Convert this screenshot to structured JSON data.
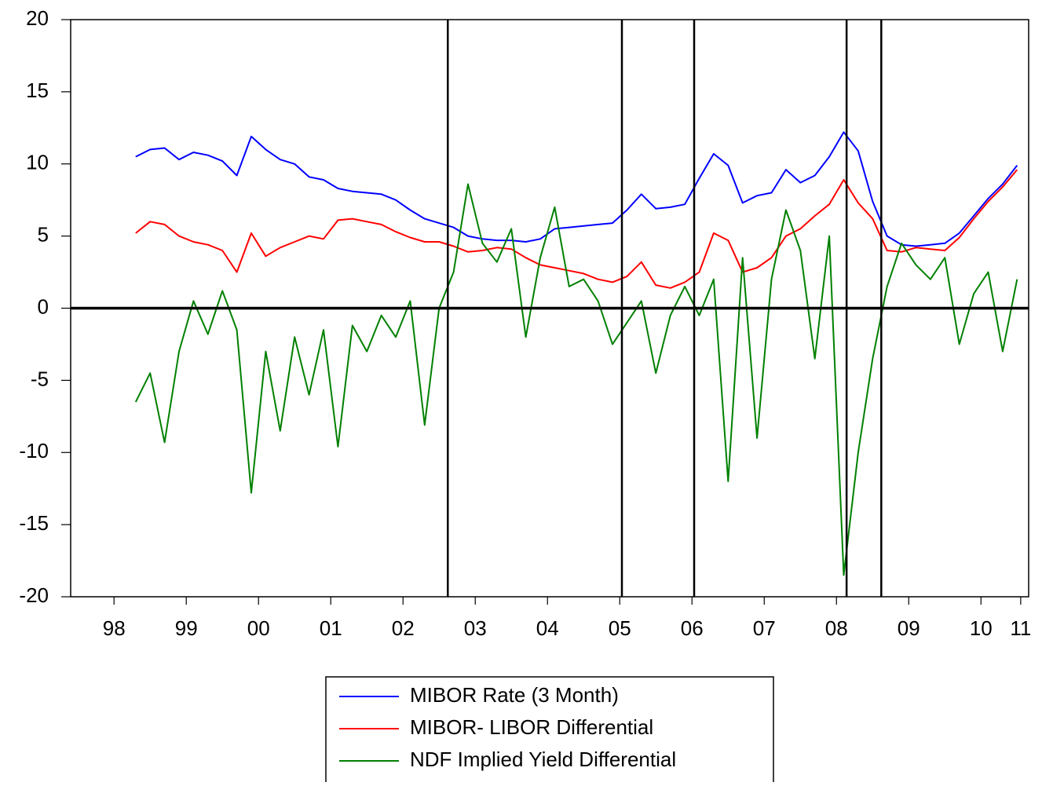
{
  "chart_data": {
    "type": "line",
    "x": [
      1998.8,
      1999.0,
      1999.2,
      1999.4,
      1999.6,
      1999.8,
      2000.0,
      2000.2,
      2000.4,
      2000.6,
      2000.8,
      2001.0,
      2001.2,
      2001.4,
      2001.6,
      2001.8,
      2002.0,
      2002.2,
      2002.4,
      2002.6,
      2002.8,
      2003.0,
      2003.2,
      2003.4,
      2003.6,
      2003.8,
      2004.0,
      2004.2,
      2004.4,
      2004.6,
      2004.8,
      2005.0,
      2005.2,
      2005.4,
      2005.6,
      2005.8,
      2006.0,
      2006.2,
      2006.4,
      2006.6,
      2006.8,
      2007.0,
      2007.2,
      2007.4,
      2007.6,
      2007.8,
      2008.0,
      2008.2,
      2008.4,
      2008.6,
      2008.8,
      2009.0,
      2009.2,
      2009.4,
      2009.6,
      2009.8,
      2010.0,
      2010.2,
      2010.4,
      2010.6,
      2010.8,
      2011.0
    ],
    "series": [
      {
        "name": "MIBOR Rate (3 Month)",
        "color": "#0000ff",
        "values": [
          10.5,
          11.0,
          11.1,
          10.3,
          10.8,
          10.6,
          10.2,
          9.2,
          11.9,
          11.0,
          10.3,
          10.0,
          9.1,
          8.9,
          8.3,
          8.1,
          8.0,
          7.9,
          7.5,
          6.8,
          6.2,
          5.9,
          5.6,
          5.0,
          4.8,
          4.7,
          4.7,
          4.6,
          4.8,
          5.5,
          5.6,
          5.7,
          5.8,
          5.9,
          6.8,
          7.9,
          6.9,
          7.0,
          7.2,
          9.0,
          10.7,
          9.9,
          7.3,
          7.8,
          8.0,
          9.6,
          8.7,
          9.2,
          10.5,
          12.2,
          10.9,
          7.4,
          5.0,
          4.4,
          4.3,
          4.4,
          4.5,
          5.2,
          6.4,
          7.6,
          8.6,
          9.9
        ]
      },
      {
        "name": "MIBOR- LIBOR Differential",
        "color": "#ff0000",
        "values": [
          5.2,
          6.0,
          5.8,
          5.0,
          4.6,
          4.4,
          4.0,
          2.5,
          5.2,
          3.6,
          4.2,
          4.6,
          5.0,
          4.8,
          6.1,
          6.2,
          6.0,
          5.8,
          5.3,
          4.9,
          4.6,
          4.6,
          4.3,
          3.9,
          4.0,
          4.2,
          4.1,
          3.5,
          3.0,
          2.8,
          2.6,
          2.4,
          2.0,
          1.8,
          2.2,
          3.2,
          1.6,
          1.4,
          1.8,
          2.5,
          5.2,
          4.7,
          2.5,
          2.8,
          3.5,
          5.0,
          5.5,
          6.4,
          7.2,
          8.9,
          7.3,
          6.2,
          4.0,
          3.9,
          4.2,
          4.1,
          4.0,
          4.9,
          6.2,
          7.4,
          8.4,
          9.6
        ]
      },
      {
        "name": "NDF Implied Yield Differential",
        "color": "#008000",
        "values": [
          -6.5,
          -4.5,
          -9.3,
          -3.0,
          0.5,
          -1.8,
          1.2,
          -1.5,
          -12.8,
          -3.0,
          -8.5,
          -2.0,
          -6.0,
          -1.5,
          -9.6,
          -1.2,
          -3.0,
          -0.5,
          -2.0,
          0.5,
          -8.1,
          0.0,
          2.5,
          8.6,
          4.5,
          3.2,
          5.5,
          -2.0,
          3.5,
          7.0,
          1.5,
          2.0,
          0.5,
          -2.5,
          -1.0,
          0.5,
          -4.5,
          -0.5,
          1.5,
          -0.5,
          2.0,
          -12.0,
          3.5,
          -9.0,
          2.0,
          6.8,
          4.0,
          -3.5,
          5.0,
          -18.5,
          -10.0,
          -3.5,
          1.5,
          4.5,
          3.0,
          2.0,
          3.5,
          -2.5,
          1.0,
          2.5,
          -3.0,
          2.0
        ]
      }
    ],
    "xlim": [
      1997.9,
      2011.16
    ],
    "xticks": [
      {
        "value": 1998.5,
        "label": "98"
      },
      {
        "value": 1999.5,
        "label": "99"
      },
      {
        "value": 2000.5,
        "label": "00"
      },
      {
        "value": 2001.5,
        "label": "01"
      },
      {
        "value": 2002.5,
        "label": "02"
      },
      {
        "value": 2003.5,
        "label": "03"
      },
      {
        "value": 2004.5,
        "label": "04"
      },
      {
        "value": 2005.5,
        "label": "05"
      },
      {
        "value": 2006.5,
        "label": "06"
      },
      {
        "value": 2007.5,
        "label": "07"
      },
      {
        "value": 2008.5,
        "label": "08"
      },
      {
        "value": 2009.5,
        "label": "09"
      },
      {
        "value": 2010.5,
        "label": "10"
      },
      {
        "value": 2011.05,
        "label": "11"
      }
    ],
    "ylim": [
      -20,
      20
    ],
    "yticks": [
      -20,
      -15,
      -10,
      -5,
      0,
      5,
      10,
      15,
      20
    ],
    "vlines": [
      2003.12,
      2005.53,
      2006.53,
      2008.64,
      2009.12
    ],
    "hline": 0,
    "legend": "bottom"
  }
}
